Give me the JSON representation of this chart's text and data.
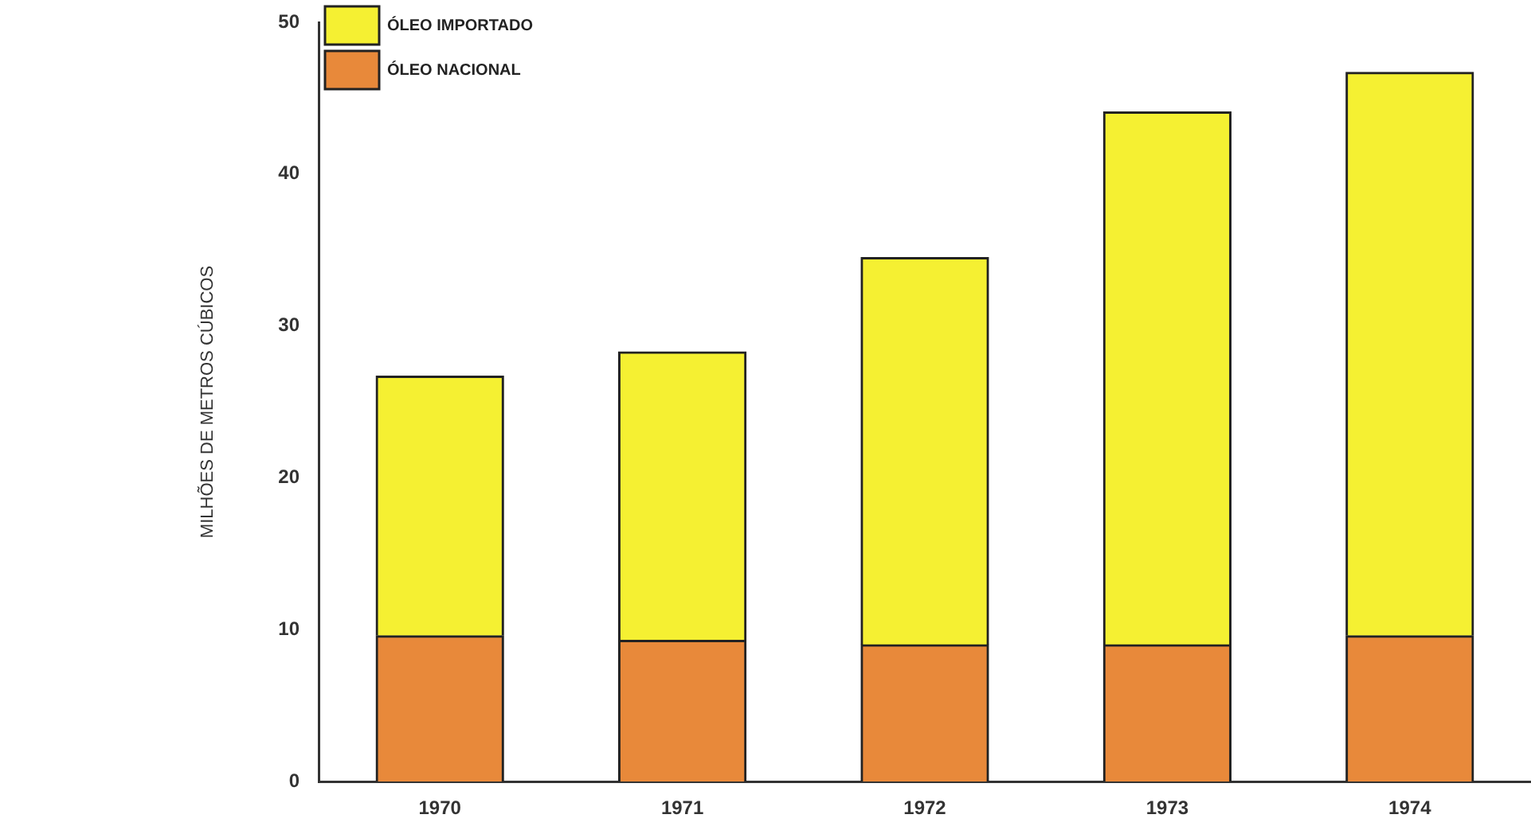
{
  "chart_data": {
    "type": "bar",
    "ylabel": "MILHÕES DE METROS CÚBICOS",
    "categories": [
      "1970",
      "1971",
      "1972",
      "1973",
      "1974"
    ],
    "stacked": true,
    "series": [
      {
        "name": "ÓLEO NACIONAL",
        "color": "#e8893a",
        "values": [
          9.6,
          9.3,
          9.0,
          9.0,
          9.6
        ]
      },
      {
        "name": "ÓLEO IMPORTADO",
        "color": "#f5f032",
        "values": [
          17.1,
          19.0,
          25.5,
          35.1,
          37.1
        ]
      }
    ],
    "ylim": [
      0,
      50
    ],
    "yticks": [
      0,
      10,
      20,
      30,
      40,
      50
    ],
    "grid": false,
    "legend": "top left"
  }
}
